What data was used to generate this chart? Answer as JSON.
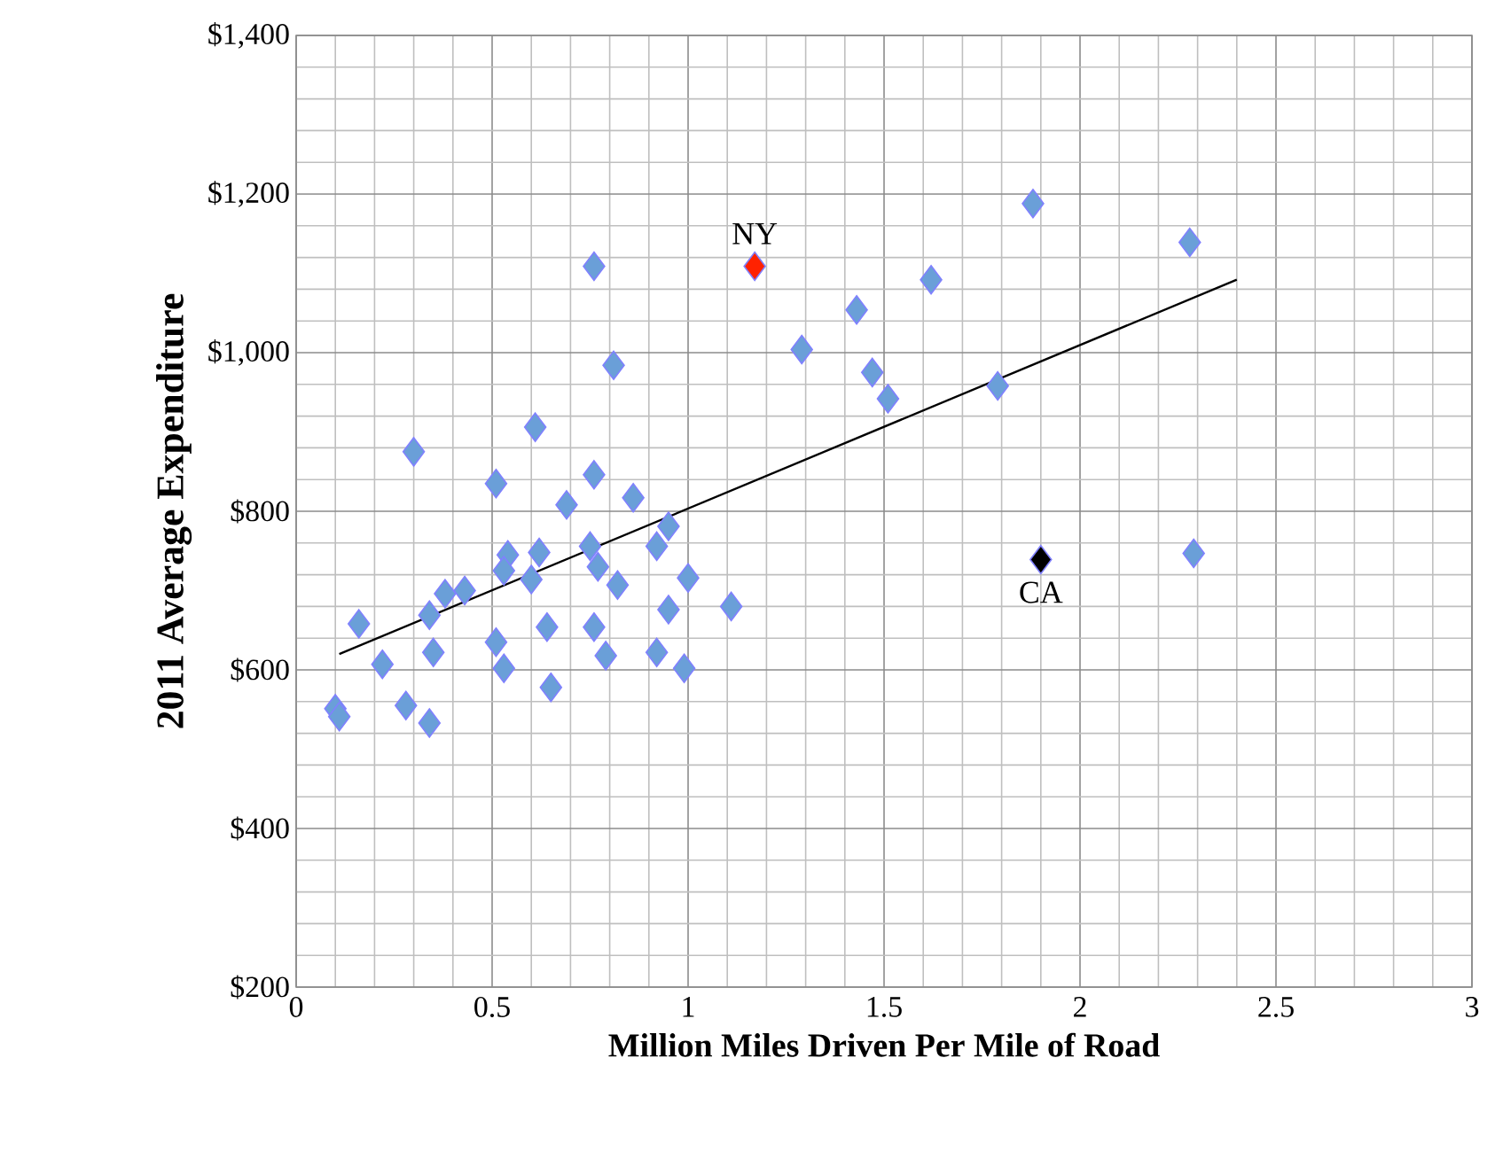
{
  "chart_data": {
    "type": "scatter",
    "xlabel": "Million Miles Driven Per Mile of Road",
    "ylabel": "2011 Average Expenditure",
    "xlim": [
      0,
      3
    ],
    "xticks": [
      0,
      0.5,
      1,
      1.5,
      2,
      2.5,
      3
    ],
    "ylim": [
      200,
      1400
    ],
    "yticks": [
      {
        "value": 200,
        "label": "$200"
      },
      {
        "value": 400,
        "label": "$400"
      },
      {
        "value": 600,
        "label": "$600"
      },
      {
        "value": 800,
        "label": "$800"
      },
      {
        "value": 1000,
        "label": "$1,000"
      },
      {
        "value": 1200,
        "label": "$1,200"
      },
      {
        "value": 1400,
        "label": "$1,400"
      }
    ],
    "grid": true,
    "marker": "diamond",
    "series": [
      {
        "color": "#6a9fd8",
        "x": [
          0.81,
          0.61,
          0.3,
          0.51,
          0.76,
          0.69,
          0.86,
          0.95,
          0.92,
          0.75,
          0.77,
          0.82,
          1.0,
          1.11,
          0.95,
          0.54,
          0.62,
          0.53,
          0.6,
          0.43,
          0.38,
          0.34,
          0.16,
          0.22,
          0.35,
          0.51,
          0.53,
          0.64,
          0.76,
          0.79,
          0.92,
          0.99,
          0.65,
          0.1,
          0.11,
          0.28,
          0.34,
          0.76,
          1.29,
          1.43,
          1.62,
          1.88,
          2.28,
          1.47,
          1.51,
          1.79,
          2.29
        ],
        "values": [
          984,
          906,
          875,
          835,
          846,
          808,
          817,
          781,
          756,
          756,
          730,
          707,
          716,
          680,
          676,
          745,
          748,
          725,
          714,
          700,
          696,
          669,
          658,
          607,
          622,
          635,
          602,
          654,
          654,
          618,
          622,
          602,
          578,
          551,
          541,
          555,
          533,
          1109,
          1004,
          1054,
          1092,
          1188,
          1139,
          975,
          942,
          958,
          747
        ]
      },
      {
        "color": "#ff2200",
        "x": [
          1.17
        ],
        "values": [
          1109
        ]
      },
      {
        "color": "#000000",
        "x": [
          1.9
        ],
        "values": [
          739
        ]
      },
      {
        "type": "line",
        "marker": "none",
        "color": "#000000",
        "x": [
          0.11,
          2.4
        ],
        "values": [
          620,
          1092
        ]
      }
    ],
    "annotations": [
      {
        "text": "NY",
        "x": 1.17,
        "y": 1109
      },
      {
        "text": "CA",
        "x": 1.9,
        "y": 739
      }
    ]
  }
}
